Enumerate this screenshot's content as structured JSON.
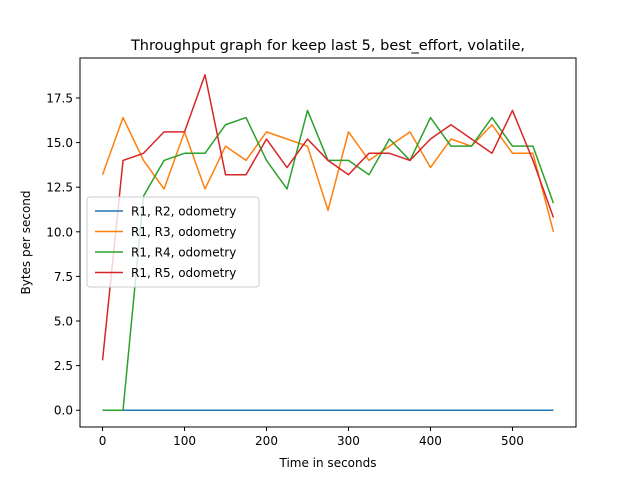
{
  "chart_data": {
    "type": "line",
    "title": "Throughput graph for keep last 5, best_effort, volatile,",
    "xlabel": "Time in seconds",
    "ylabel": "Bytes per second",
    "xlim": [
      -27.5,
      577.5
    ],
    "ylim": [
      -0.94,
      19.74
    ],
    "xticks": [
      0,
      100,
      200,
      300,
      400,
      500
    ],
    "yticks": [
      0.0,
      2.5,
      5.0,
      7.5,
      10.0,
      12.5,
      15.0,
      17.5
    ],
    "xtick_labels": [
      "0",
      "100",
      "200",
      "300",
      "400",
      "500"
    ],
    "ytick_labels": [
      "0.0",
      "2.5",
      "5.0",
      "7.5",
      "10.0",
      "12.5",
      "15.0",
      "17.5"
    ],
    "grid": false,
    "legend_position": "center-left",
    "x": [
      0,
      25,
      50,
      75,
      100,
      125,
      150,
      175,
      200,
      225,
      250,
      275,
      300,
      325,
      350,
      375,
      400,
      425,
      450,
      475,
      500,
      525,
      550
    ],
    "series": [
      {
        "name": "R1, R2, odometry",
        "color": "#1f77b4",
        "values": [
          0,
          0,
          0,
          0,
          0,
          0,
          0,
          0,
          0,
          0,
          0,
          0,
          0,
          0,
          0,
          0,
          0,
          0,
          0,
          0,
          0,
          0,
          0
        ]
      },
      {
        "name": "R1, R3, odometry",
        "color": "#ff7f0e",
        "values": [
          13.2,
          16.4,
          14.0,
          12.4,
          15.6,
          12.4,
          14.8,
          14.0,
          15.6,
          15.2,
          14.8,
          11.2,
          15.6,
          14.0,
          14.8,
          15.6,
          13.6,
          15.2,
          14.8,
          16.0,
          14.4,
          14.4,
          10.0
        ]
      },
      {
        "name": "R1, R4, odometry",
        "color": "#2ca02c",
        "values": [
          0,
          0,
          12.0,
          14.0,
          14.4,
          14.4,
          16.0,
          16.4,
          14.0,
          12.4,
          16.8,
          14.0,
          14.0,
          13.2,
          15.2,
          14.0,
          16.4,
          14.8,
          14.8,
          16.4,
          14.8,
          14.8,
          11.6
        ]
      },
      {
        "name": "R1, R5, odometry",
        "color": "#d62728",
        "values": [
          2.8,
          14.0,
          14.4,
          15.6,
          15.6,
          18.8,
          13.2,
          13.2,
          15.2,
          13.6,
          15.2,
          14.0,
          13.2,
          14.4,
          14.4,
          14.0,
          15.2,
          16.0,
          15.2,
          14.4,
          16.8,
          14.0,
          10.8
        ]
      }
    ]
  }
}
